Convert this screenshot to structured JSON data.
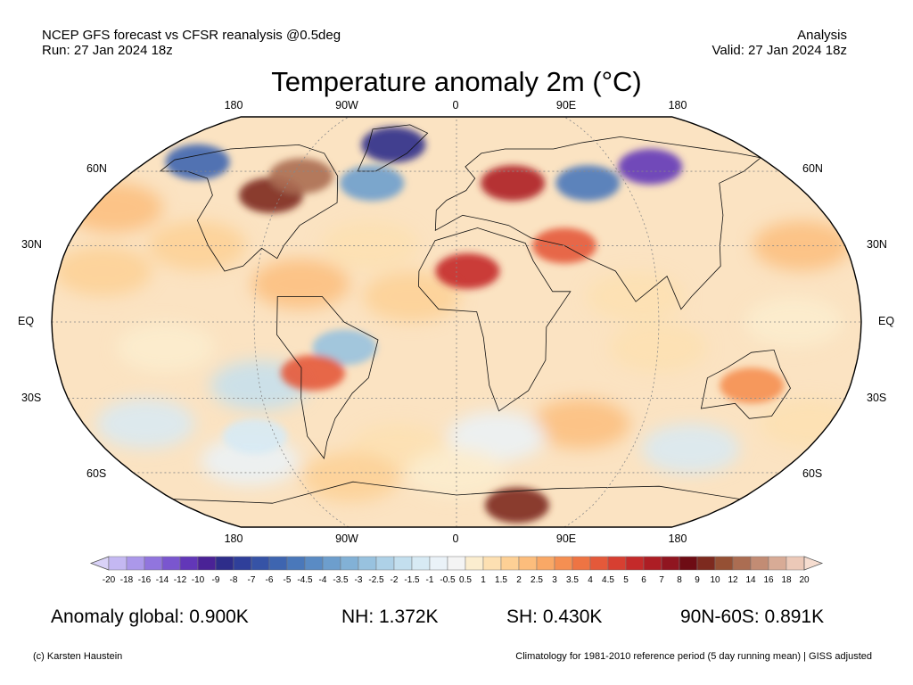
{
  "header": {
    "line1_left": "NCEP GFS forecast vs CFSR reanalysis @0.5deg",
    "line2_left": "Run: 27 Jan 2024 18z",
    "line1_right": "Analysis",
    "line2_right": "Valid: 27 Jan 2024 18z"
  },
  "title": "Temperature anomaly 2m (°C)",
  "map": {
    "projection": "Robinson",
    "lon_labels": [
      "180",
      "90W",
      "0",
      "90E",
      "180"
    ],
    "lat_labels": [
      "60N",
      "30N",
      "EQ",
      "30S",
      "60S"
    ],
    "regions": [
      {
        "name": "north-america-warm",
        "lon": -95,
        "lat": 50,
        "anomaly": 9
      },
      {
        "name": "canada-hudson-warm",
        "lon": -85,
        "lat": 58,
        "anomaly": 12
      },
      {
        "name": "alaska-cold",
        "lon": -150,
        "lat": 64,
        "anomaly": -6
      },
      {
        "name": "greenland-cold",
        "lon": -40,
        "lat": 72,
        "anomaly": -9
      },
      {
        "name": "north-atlantic-cold",
        "lon": -45,
        "lat": 55,
        "anomaly": -4
      },
      {
        "name": "siberia-cold",
        "lon": 110,
        "lat": 62,
        "anomaly": -12
      },
      {
        "name": "central-asia-cold",
        "lon": 70,
        "lat": 55,
        "anomaly": -5
      },
      {
        "name": "europe-warm",
        "lon": 30,
        "lat": 55,
        "anomaly": 6
      },
      {
        "name": "sahara-warm",
        "lon": 5,
        "lat": 20,
        "anomaly": 5
      },
      {
        "name": "middle-east-warm",
        "lon": 50,
        "lat": 30,
        "anomaly": 4
      },
      {
        "name": "brazil-cold",
        "lon": -50,
        "lat": -10,
        "anomaly": -3
      },
      {
        "name": "south-america-warm",
        "lon": -65,
        "lat": -20,
        "anomaly": 4
      },
      {
        "name": "australia-warm",
        "lon": 135,
        "lat": -25,
        "anomaly": 3
      },
      {
        "name": "antarctica-warm",
        "lon": 40,
        "lat": -75,
        "anomaly": 9
      },
      {
        "name": "southern-ocean-cold",
        "lon": -100,
        "lat": -45,
        "anomaly": -1.5
      }
    ]
  },
  "colorbar": {
    "ticks": [
      "-20",
      "-18",
      "-16",
      "-14",
      "-12",
      "-10",
      "-9",
      "-8",
      "-7",
      "-6",
      "-5",
      "-4.5",
      "-4",
      "-3.5",
      "-3",
      "-2.5",
      "-2",
      "-1.5",
      "-1",
      "-0.5",
      "0.5",
      "1",
      "1.5",
      "2",
      "2.5",
      "3",
      "3.5",
      "4",
      "4.5",
      "5",
      "6",
      "7",
      "8",
      "9",
      "10",
      "12",
      "14",
      "16",
      "18",
      "20"
    ],
    "colors": [
      "#d9d2f7",
      "#c4b8f2",
      "#ab98ea",
      "#9175de",
      "#7a56cf",
      "#6237b8",
      "#4a2296",
      "#2e2d8a",
      "#2f3f9a",
      "#3653a6",
      "#3e65b0",
      "#4a78ba",
      "#5a8bc4",
      "#6d9ecd",
      "#82b1d6",
      "#98c2df",
      "#aed1e7",
      "#c3dfee",
      "#d7eaf4",
      "#eaf2f8",
      "#f4f4f4",
      "#fbedcf",
      "#fde0b2",
      "#fdd095",
      "#fcbd7c",
      "#f9a866",
      "#f58f52",
      "#ee7443",
      "#e4593a",
      "#d73f31",
      "#c42a2a",
      "#ad1d24",
      "#901520",
      "#6e0c14",
      "#7d2a1f",
      "#955034",
      "#ab6d52",
      "#c28c74",
      "#d8ab96",
      "#ecc9b8",
      "#f6ddd0"
    ]
  },
  "stats": {
    "global": "Anomaly global: 0.900K",
    "nh": "NH: 1.372K",
    "sh": "SH: 0.430K",
    "arctic": "90N-60S: 0.891K"
  },
  "footer": {
    "credit": "(c) Karsten Haustein",
    "note": "Climatology for 1981-2010 reference period (5 day running mean) | GISS adjusted"
  }
}
